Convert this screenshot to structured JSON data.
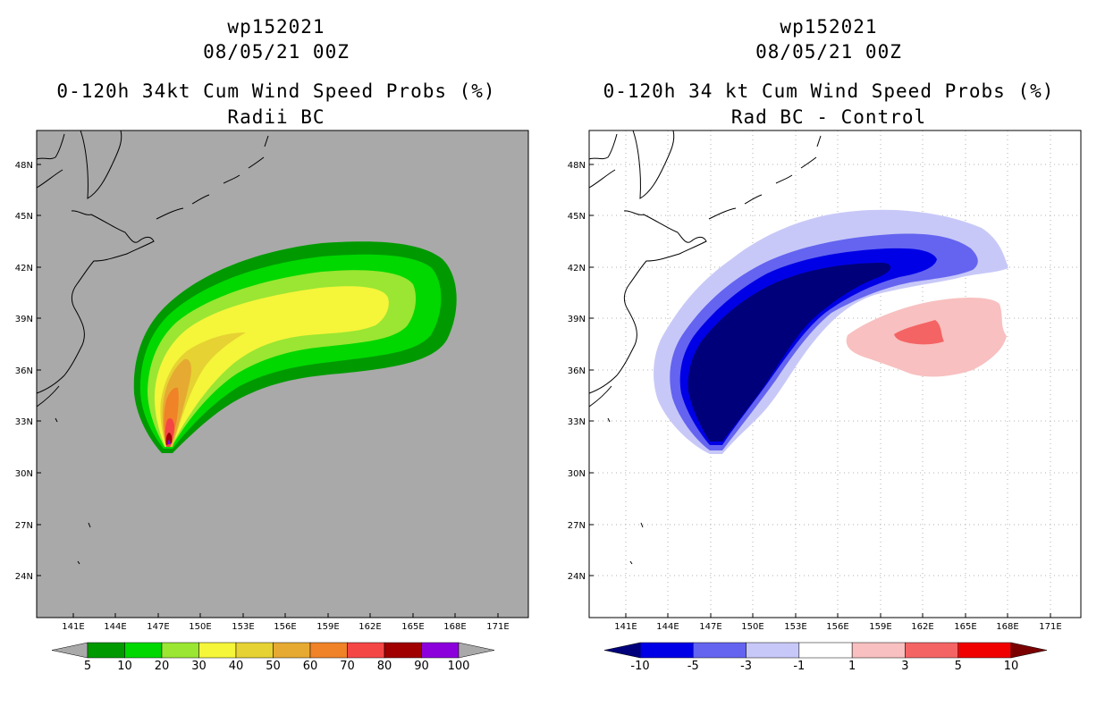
{
  "colors": {
    "gray": "#a9a9a9",
    "land_line": "#000000",
    "grid_dots": "#b0b0b0"
  },
  "panels": [
    {
      "storm": "wp152021",
      "datetime": "08/05/21 00Z",
      "title": "0-120h 34kt Cum Wind Speed Probs (%)",
      "subtitle": "Radii BC",
      "y_ticks": [
        "48N",
        "45N",
        "42N",
        "39N",
        "36N",
        "33N",
        "30N",
        "27N",
        "24N"
      ],
      "x_ticks": [
        "141E",
        "144E",
        "147E",
        "150E",
        "153E",
        "156E",
        "159E",
        "162E",
        "165E",
        "168E",
        "171E"
      ],
      "colorbar": {
        "colors": [
          "#009a00",
          "#00d800",
          "#9ae632",
          "#f5f53a",
          "#e6d232",
          "#e6aa32",
          "#f08228",
          "#f54646",
          "#a00000",
          "#8c00dc"
        ],
        "labels": [
          "5",
          "10",
          "20",
          "30",
          "40",
          "50",
          "60",
          "70",
          "80",
          "90",
          "100"
        ],
        "left_arrow": "#a9a9a9",
        "right_arrow": "#a9a9a9"
      }
    },
    {
      "storm": "wp152021",
      "datetime": "08/05/21 00Z",
      "title": "0-120h 34 kt Cum Wind Speed Probs (%)",
      "subtitle": "Rad BC - Control",
      "y_ticks": [
        "48N",
        "45N",
        "42N",
        "39N",
        "36N",
        "33N",
        "30N",
        "27N",
        "24N"
      ],
      "x_ticks": [
        "141E",
        "144E",
        "147E",
        "150E",
        "153E",
        "156E",
        "159E",
        "162E",
        "165E",
        "168E",
        "171E"
      ],
      "colorbar": {
        "colors": [
          "#0000e6",
          "#6464f0",
          "#c8c8f8",
          "#ffffff",
          "#f8c0c0",
          "#f46464",
          "#f00000"
        ],
        "labels": [
          "-10",
          "-5",
          "-3",
          "-1",
          "1",
          "3",
          "5",
          "10"
        ],
        "left_arrow": "#00007a",
        "right_arrow": "#7a0000"
      }
    }
  ]
}
